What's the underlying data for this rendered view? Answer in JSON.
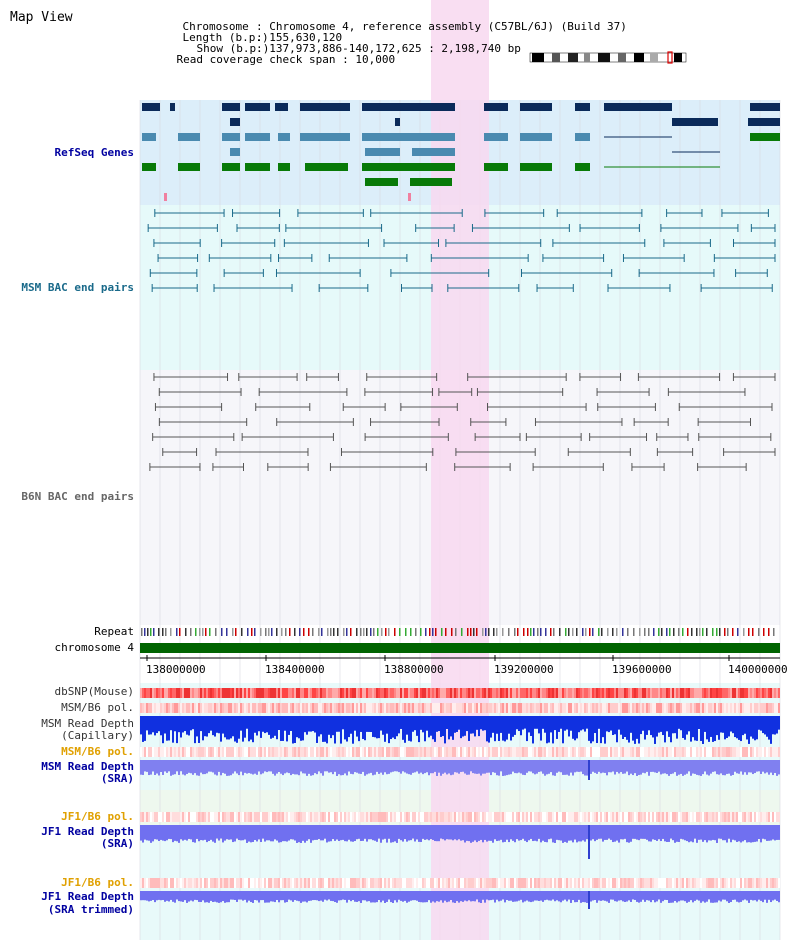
{
  "header": {
    "title": "Map View",
    "chromosome_label": "Chromosome",
    "chromosome_value": "Chromosome 4, reference assembly (C57BL/6J) (Build 37)",
    "length_label": "Length (b.p.)",
    "length_value": "155,630,120",
    "show_label": "Show (b.p.)",
    "show_value": "137,973,886-140,172,625 : 2,198,740 bp",
    "read_cov_label": "Read coverage check span",
    "read_cov_value": "10,000"
  },
  "tracks": {
    "refseq": "RefSeq Genes",
    "msm_bac": "MSM BAC end pairs",
    "b6n_bac": "B6N BAC end pairs",
    "repeat": "Repeat",
    "chromosome": "chromosome 4",
    "dbsnp": "dbSNP(Mouse)",
    "msm_b6_pol_1": "MSM/B6 pol.",
    "msm_read_depth_cap_1": "MSM Read Depth",
    "msm_read_depth_cap_2": "(Capillary)",
    "msm_b6_pol_2": "MSM/B6 pol.",
    "msm_read_depth_sra_1": "MSM Read Depth",
    "msm_read_depth_sra_2": "(SRA)",
    "jf1_b6_pol_1": "JF1/B6 pol.",
    "jf1_read_depth_1": "JF1 Read Depth",
    "jf1_read_depth_2": "(SRA)",
    "jf1_b6_pol_2": "JF1/B6 pol.",
    "jf1_read_depth_trim_1": "JF1 Read Depth",
    "jf1_read_depth_trim_2": "(SRA trimmed)"
  },
  "axis": {
    "ticks": [
      "138000000",
      "138400000",
      "138800000",
      "139200000",
      "139600000",
      "140000000"
    ]
  },
  "colors": {
    "label_blue": "#0000a0",
    "label_teal": "#1a6a8a",
    "label_orange": "#e0a000",
    "highlight": "#f8d8f0",
    "chromosome_bar": "#006400"
  }
}
